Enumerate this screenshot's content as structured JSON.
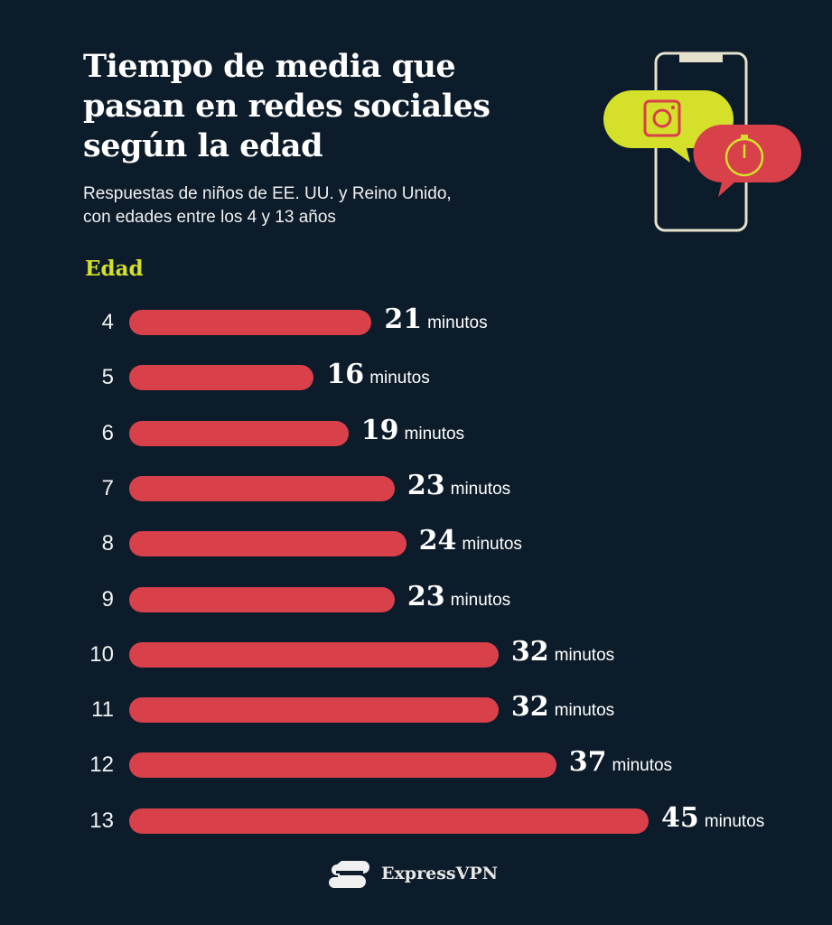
{
  "chart_data": {
    "type": "bar",
    "orientation": "horizontal",
    "title": "Tiempo de media que\npasan en redes sociales\nsegún la edad",
    "subtitle": "Respuestas de niños de EE. UU. y Reino Unido,\ncon edades entre los 4 y 13 años",
    "ylabel": "Edad",
    "categories": [
      "4",
      "5",
      "6",
      "7",
      "8",
      "9",
      "10",
      "11",
      "12",
      "13"
    ],
    "values": [
      21,
      16,
      19,
      23,
      24,
      23,
      32,
      32,
      37,
      45
    ],
    "unit": "minutos",
    "xlim": [
      0,
      45
    ],
    "grid": false,
    "colors": {
      "bar": "#d8404a",
      "background": "#0d1c2b",
      "accent": "#d4e02a"
    }
  },
  "brand": {
    "name": "ExpressVPN"
  },
  "illustration": {
    "icons": [
      "phone-icon",
      "instagram-icon",
      "stopwatch-icon"
    ]
  }
}
